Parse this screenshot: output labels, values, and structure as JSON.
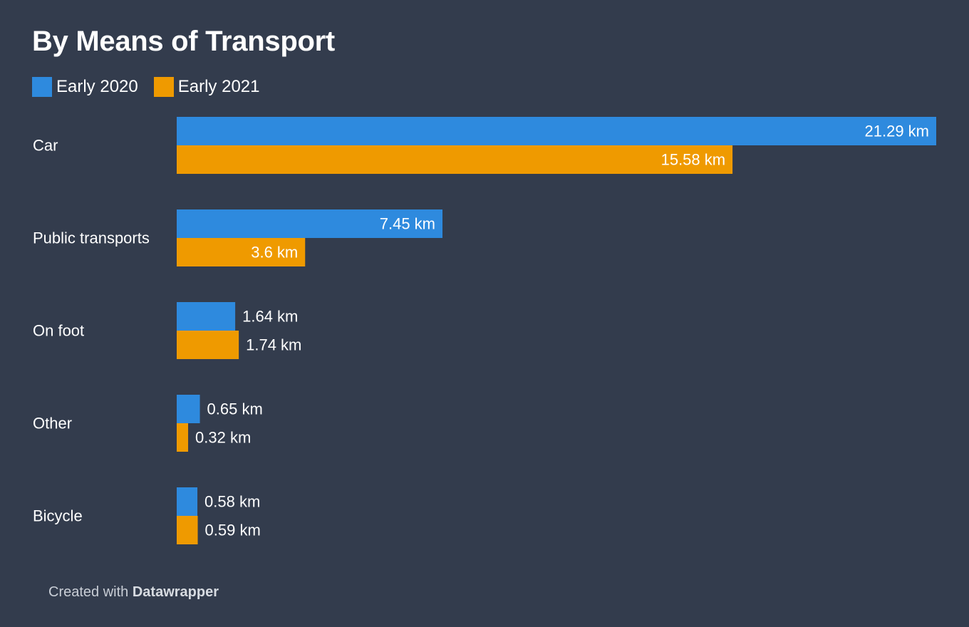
{
  "colors": {
    "background": "#333c4d",
    "early_2020": "#2e8ade",
    "early_2021": "#ef9a00"
  },
  "chart_data": {
    "type": "bar",
    "orientation": "horizontal",
    "title": "By Means of Transport",
    "categories": [
      "Car",
      "Public transports",
      "On foot",
      "Other",
      "Bicycle"
    ],
    "series": [
      {
        "name": "Early 2020",
        "color": "#2e8ade",
        "values": [
          21.29,
          7.45,
          1.64,
          0.65,
          0.58
        ],
        "labels": [
          "21.29 km",
          "7.45 km",
          "1.64 km",
          "0.65 km",
          "0.58 km"
        ]
      },
      {
        "name": "Early 2021",
        "color": "#ef9a00",
        "values": [
          15.58,
          3.6,
          1.74,
          0.32,
          0.59
        ],
        "labels": [
          "15.58 km",
          "3.6 km",
          "1.74 km",
          "0.32 km",
          "0.59 km"
        ]
      }
    ],
    "xlim": [
      0,
      21.29
    ],
    "unit": "km",
    "legend": "top-left",
    "grid": false
  },
  "footer": {
    "prefix": "Created with",
    "brand": "Datawrapper"
  }
}
